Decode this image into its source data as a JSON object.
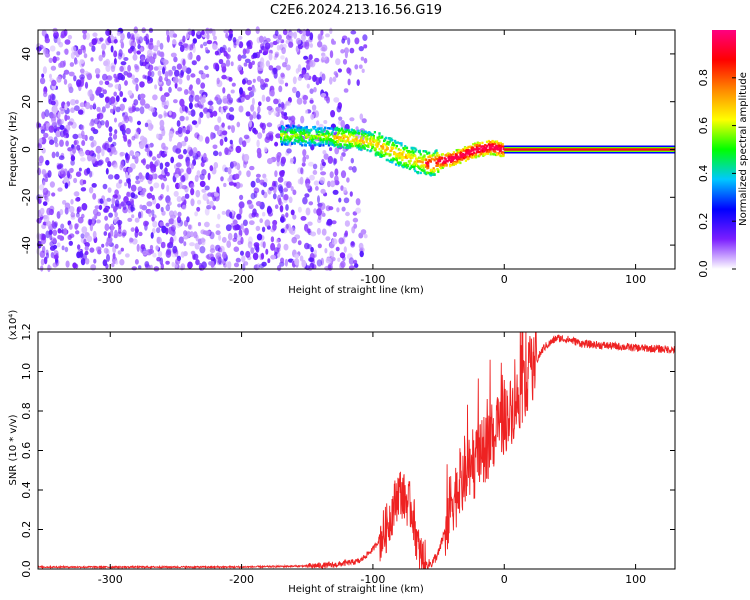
{
  "figure": {
    "title": "C2E6.2024.213.16.56.G19"
  },
  "chart_data": [
    {
      "type": "heatmap",
      "xlabel": "Height of straight line (km)",
      "ylabel": "Frequency (Hz)",
      "xlim": [
        -355,
        130
      ],
      "ylim": [
        -50,
        50
      ],
      "x_ticks": [
        -300,
        -200,
        -100,
        0,
        100
      ],
      "y_ticks": [
        -40,
        -20,
        0,
        20,
        40
      ],
      "colorbar": {
        "label": "Normalized spectral amplitude",
        "range": [
          0.0,
          1.0
        ],
        "ticks": [
          "0.0",
          "0.2",
          "0.4",
          "0.6",
          "0.8"
        ],
        "colormap": [
          "#ffffff",
          "#7b1fff",
          "#0000ff",
          "#00c8ff",
          "#00ff00",
          "#ffff00",
          "#ff8800",
          "#ff0000",
          "#ff0080"
        ]
      },
      "ridge": {
        "description_points_x": [
          -165,
          -125,
          -100,
          -80,
          -65,
          -55,
          -50,
          -40,
          -30,
          -20,
          -10,
          0,
          50,
          130
        ],
        "frequency_y": [
          6,
          5,
          3,
          -2,
          -5,
          -6,
          -5,
          -4,
          -2,
          0,
          1,
          0,
          0,
          0
        ]
      }
    },
    {
      "type": "line",
      "xlabel": "Height of straight line (km)",
      "ylabel": "SNR (10 * v/v)",
      "y_multiplier": "(x10⁴)",
      "xlim": [
        -355,
        130
      ],
      "ylim": [
        0,
        1.2
      ],
      "x_ticks": [
        -300,
        -200,
        -100,
        0,
        100
      ],
      "y_ticks": [
        "0.0",
        "0.2",
        "0.4",
        "0.6",
        "0.8",
        "1.0",
        "1.2"
      ],
      "color": "#ee2222",
      "series": [
        {
          "x": [
            -355,
            -300,
            -250,
            -200,
            -150,
            -130,
            -110,
            -100,
            -90,
            -80,
            -75,
            -70,
            -65,
            -60,
            -55,
            -50,
            -45,
            -40,
            -30,
            -20,
            -10,
            0,
            10,
            20,
            30,
            40,
            50,
            60,
            80,
            100,
            130
          ],
          "values": [
            0.01,
            0.01,
            0.01,
            0.01,
            0.015,
            0.02,
            0.04,
            0.1,
            0.2,
            0.4,
            0.35,
            0.3,
            0.08,
            0.02,
            0.03,
            0.08,
            0.2,
            0.35,
            0.45,
            0.55,
            0.65,
            0.75,
            0.85,
            1.0,
            1.12,
            1.17,
            1.16,
            1.14,
            1.13,
            1.12,
            1.11
          ]
        }
      ]
    }
  ]
}
